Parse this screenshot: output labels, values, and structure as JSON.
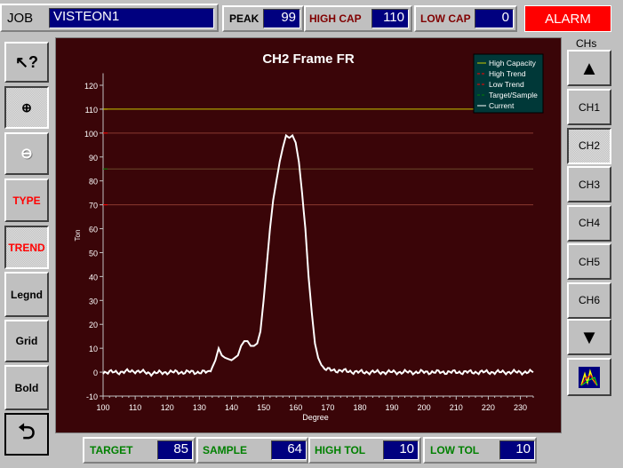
{
  "header": {
    "job_label": "JOB",
    "job_value": "VISTEON1",
    "peak_label": "PEAK",
    "peak_value": "99",
    "high_cap_label": "HIGH CAP",
    "high_cap_value": "110",
    "low_cap_label": "LOW CAP",
    "low_cap_value": "0",
    "alarm_label": "ALARM"
  },
  "toolbar": {
    "help_icon": "pointer-question-icon",
    "zoom_in_icon": "zoom-in-icon",
    "zoom_out_icon": "zoom-out-icon",
    "type_label": "TYPE",
    "trend_label": "TREND",
    "legend_label": "Legnd",
    "grid_label": "Grid",
    "bold_label": "Bold",
    "back_icon": "return-arrow-icon"
  },
  "channels": {
    "title": "CHs",
    "items": [
      "CH1",
      "CH2",
      "CH3",
      "CH4",
      "CH5",
      "CH6"
    ],
    "selected": "CH2",
    "up_icon": "triangle-up-icon",
    "down_icon": "triangle-down-icon",
    "chart_icon": "chart-icon"
  },
  "footer": {
    "target_label": "TARGET",
    "target_value": "85",
    "sample_label": "SAMPLE",
    "sample_value": "64",
    "high_tol_label": "HIGH TOL",
    "high_tol_value": "10",
    "low_tol_label": "LOW TOL",
    "low_tol_value": "10"
  },
  "colors": {
    "plot_bg": "#3a0508",
    "alarm": "#ff0000",
    "high_capacity": "#c8c800",
    "high_trend": "#ff0000",
    "low_trend": "#ff0000",
    "target_sample": "#008000",
    "current": "#ffffff"
  },
  "chart_data": {
    "type": "line",
    "title": "CH2 Frame FR",
    "xlabel": "Degree",
    "ylabel": "Ton",
    "xlim": [
      100,
      234
    ],
    "ylim": [
      -10,
      125
    ],
    "xticks": [
      100,
      110,
      120,
      130,
      140,
      150,
      160,
      170,
      180,
      190,
      200,
      210,
      220,
      230
    ],
    "yticks": [
      -10,
      0,
      10,
      20,
      30,
      40,
      50,
      60,
      70,
      80,
      90,
      100,
      110,
      120
    ],
    "legend": [
      "High Capacity",
      "High Trend",
      "Low Trend",
      "Target/Sample",
      "Current"
    ],
    "legend_position": "top-right",
    "reference_lines": [
      {
        "name": "High Capacity",
        "y": 110
      },
      {
        "name": "High Trend",
        "y": 100
      },
      {
        "name": "Target/Sample",
        "y": 85
      },
      {
        "name": "Low Trend",
        "y": 70
      }
    ],
    "series": [
      {
        "name": "Current",
        "x": [
          100,
          105,
          110,
          115,
          120,
          125,
          130,
          133,
          134,
          135,
          136,
          137,
          138,
          139,
          140,
          141,
          142,
          143,
          144,
          145,
          146,
          147,
          148,
          149,
          150,
          151,
          152,
          153,
          154,
          155,
          156,
          157,
          158,
          159,
          160,
          161,
          162,
          163,
          164,
          165,
          166,
          167,
          168,
          169,
          170,
          175,
          180,
          190,
          200,
          210,
          220,
          230,
          234
        ],
        "y": [
          0,
          0,
          0.5,
          -0.5,
          0,
          0,
          0,
          0,
          2,
          5,
          10,
          7,
          6,
          5.5,
          5,
          6,
          7,
          11,
          13,
          13,
          11,
          11,
          12,
          17,
          30,
          45,
          60,
          72,
          80,
          88,
          94,
          99,
          98,
          99,
          96,
          88,
          75,
          60,
          40,
          25,
          12,
          6,
          3,
          1.5,
          1,
          0.5,
          0,
          0,
          0,
          0,
          0,
          0,
          0
        ]
      }
    ]
  }
}
